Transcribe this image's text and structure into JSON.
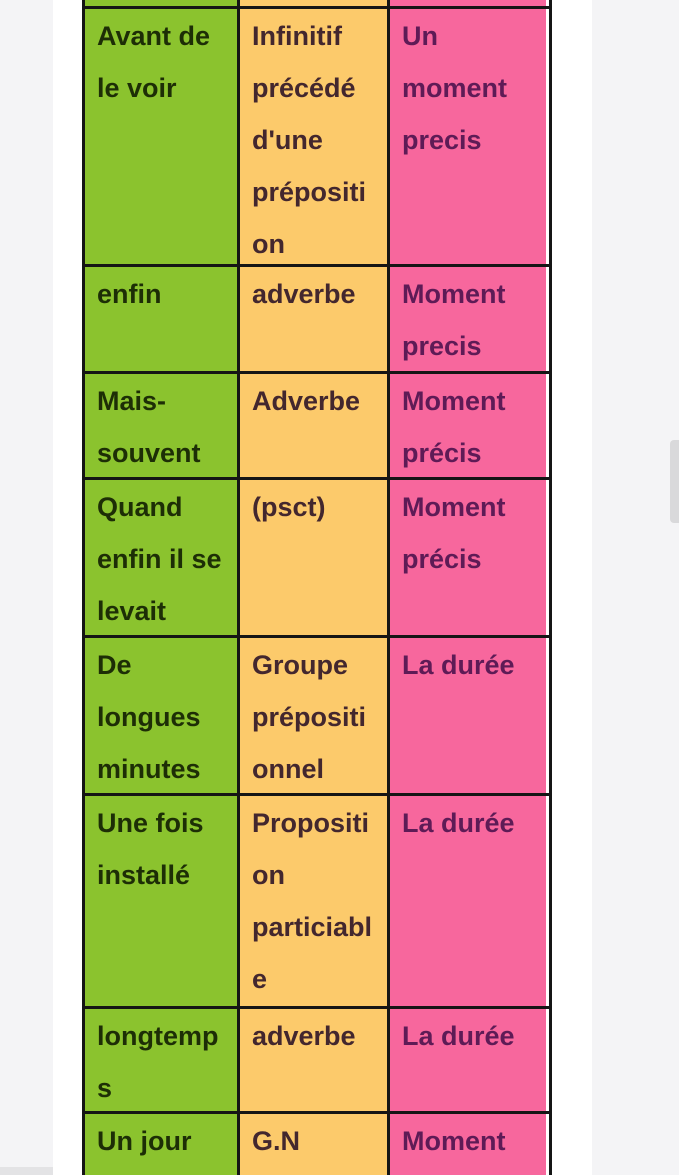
{
  "page": {
    "background_margin_color": "#f4f4f6",
    "scrollbar_thumb_color": "#d9d9db"
  },
  "table": {
    "colors": {
      "col1_bg": "#8bc32e",
      "col1_text": "#1d2e06",
      "col2_bg": "#fcca6b",
      "col2_text": "#43272e",
      "col3_bg": "#f7679d",
      "col3_text": "#5e1b56",
      "border": "#151515"
    },
    "rows": [
      {
        "c1": "",
        "c2": "",
        "c3": ""
      },
      {
        "c1": "Avant de\nle voir",
        "c2": "Infinitif\nprécédé\nd'une\nprépositi\non",
        "c3": "Un\nmoment\nprecis"
      },
      {
        "c1": "enfin",
        "c2": "adverbe",
        "c3": "Moment\nprecis"
      },
      {
        "c1": "Mais-\nsouvent",
        "c2": "Adverbe",
        "c3": "Moment\nprécis"
      },
      {
        "c1": "Quand\nenfin il se\nlevait",
        "c2": "(psct)",
        "c3": "Moment\nprécis"
      },
      {
        "c1": "De\nlongues\nminutes",
        "c2": "Groupe\nprépositi\nonnel",
        "c3": "La durée"
      },
      {
        "c1": "Une fois\ninstallé",
        "c2": "Propositi\non\nparticiabl\ne",
        "c3": "La durée"
      },
      {
        "c1": "longtemp\ns",
        "c2": "adverbe",
        "c3": "La durée"
      },
      {
        "c1": "Un jour",
        "c2": "G.N",
        "c3": "Moment"
      }
    ]
  }
}
